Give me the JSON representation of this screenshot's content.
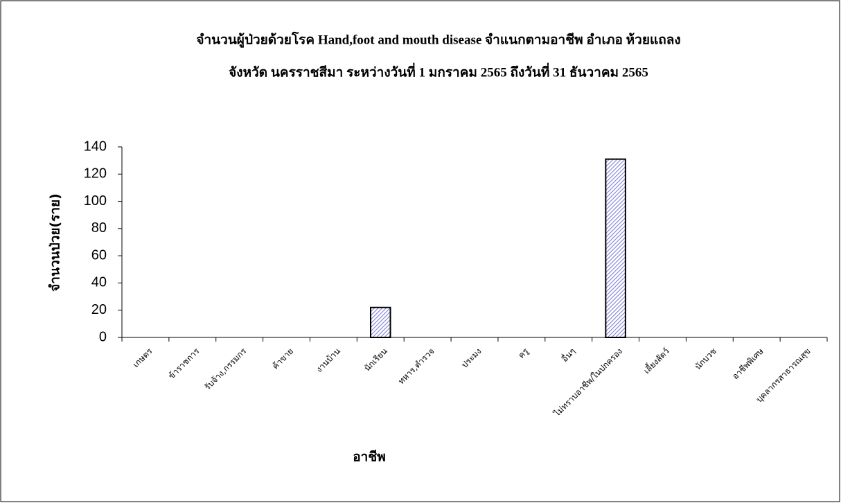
{
  "chart_data": {
    "type": "bar",
    "title": [
      "จำนวนผู้ป่วยด้วยโรค Hand,foot and mouth disease  จำแนกตามอาชีพ    อำเภอ  ห้วยแถลง",
      "จังหวัด นครราชสีมา  ระหว่างวันที่  1 มกราคม 2565  ถึงวันที่  31 ธันวาคม 2565"
    ],
    "x_label": "อาชีพ",
    "y_label": "จำนวนป่วย(ราย)",
    "categories": [
      "เกษตร",
      "ข้าราชการ",
      "รับจ้าง,กรรมกร",
      "ค้าขาย",
      "งานบ้าน",
      "นักเรียน",
      "ทหาร,ตำรวจ",
      "ประมง",
      "ครู",
      "อื่นๆ",
      "ไม่ทราบอาชีพ/ในปกครอง",
      "เลี้ยงสัตว์",
      "นักบวช",
      "อาชีพพิเศษ",
      "บุคลากรสาธารณสุข"
    ],
    "values": [
      0,
      0,
      0,
      0,
      0,
      22,
      0,
      0,
      0,
      0,
      131,
      0,
      0,
      0,
      0
    ],
    "color": "#8080d8",
    "ylim": [
      0,
      140
    ],
    "yticks": [
      0,
      20,
      40,
      60,
      80,
      100,
      120,
      140
    ],
    "grid": false
  }
}
